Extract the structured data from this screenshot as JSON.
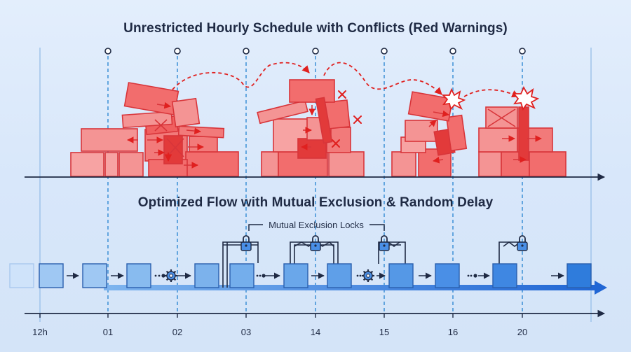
{
  "titles": {
    "top": "Unrestricted Hourly Schedule with Conflicts (Red Warnings)",
    "bottom": "Optimized Flow with Mutual Exclusion & Random Delay"
  },
  "annotation": {
    "locks_label": "Mutual Exclusion Locks"
  },
  "time_axis": {
    "labels": [
      "12h",
      "01",
      "02",
      "03",
      "14",
      "15",
      "16",
      "20"
    ]
  },
  "colors": {
    "background": "#dbe9fb",
    "conflict_fill": "#f26d6d",
    "conflict_dark": "#e23a3a",
    "warning_red": "#e0201f",
    "flow_blue": "#4a8fe6",
    "flow_dark": "#2166d4",
    "axis": "#1f2a44",
    "guide": "#3b8fd6"
  },
  "icons": [
    "gear-icon",
    "lock-icon",
    "arrow-right-icon",
    "x-mark-icon",
    "burst-icon"
  ]
}
